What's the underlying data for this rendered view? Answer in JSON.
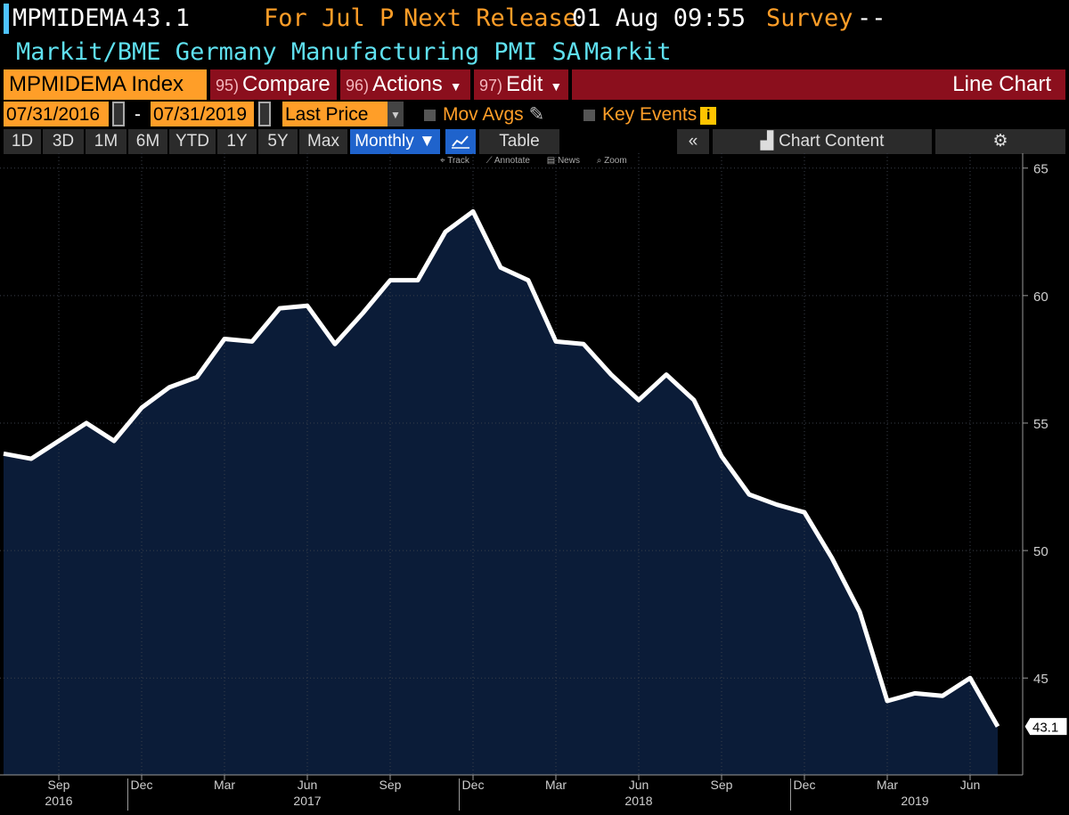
{
  "header": {
    "ticker": "MPMIDEMA",
    "last_value": "43.1",
    "for_period": "For Jul P",
    "next_release_label": "Next Release",
    "next_release_value": "01 Aug 09:55",
    "survey_label": "Survey",
    "survey_value": "--",
    "description": "Markit/BME Germany Manufacturing PMI SA",
    "source": "Markit"
  },
  "toolbar": {
    "security": "MPMIDEMA Index",
    "compare_num": "95)",
    "compare_label": "Compare",
    "actions_num": "96)",
    "actions_label": "Actions",
    "edit_num": "97)",
    "edit_label": "Edit",
    "chart_type": "Line Chart",
    "start_date": "07/31/2016",
    "date_sep": "-",
    "end_date": "07/31/2019",
    "field": "Last Price",
    "mov_avgs": "Mov Avgs",
    "key_events": "Key Events",
    "ranges": [
      "1D",
      "3D",
      "1M",
      "6M",
      "YTD",
      "1Y",
      "5Y",
      "Max"
    ],
    "frequency": "Monthly ▼",
    "table_label": "Table",
    "collapse_glyph": "«",
    "chart_content": "Chart Content",
    "settings_glyph": "⚙",
    "hints": [
      "Track",
      "Annotate",
      "News",
      "Zoom"
    ]
  },
  "colors": {
    "background": "#000000",
    "fill": "#0b1c38",
    "line": "#ffffff",
    "orange": "#ff9e28",
    "cyan": "#5fe0ef",
    "red_button": "#8b0f1d",
    "active_blue": "#1f63cc"
  },
  "chart_data": {
    "type": "area",
    "x": [
      "2016-07",
      "2016-08",
      "2016-09",
      "2016-10",
      "2016-11",
      "2016-12",
      "2017-01",
      "2017-02",
      "2017-03",
      "2017-04",
      "2017-05",
      "2017-06",
      "2017-07",
      "2017-08",
      "2017-09",
      "2017-10",
      "2017-11",
      "2017-12",
      "2018-01",
      "2018-02",
      "2018-03",
      "2018-04",
      "2018-05",
      "2018-06",
      "2018-07",
      "2018-08",
      "2018-09",
      "2018-10",
      "2018-11",
      "2018-12",
      "2019-01",
      "2019-02",
      "2019-03",
      "2019-04",
      "2019-05",
      "2019-06",
      "2019-07"
    ],
    "values": [
      53.8,
      53.6,
      54.3,
      55.0,
      54.3,
      55.6,
      56.4,
      56.8,
      58.3,
      58.2,
      59.5,
      59.6,
      58.1,
      59.3,
      60.6,
      60.6,
      62.5,
      63.3,
      61.1,
      60.6,
      58.2,
      58.1,
      56.9,
      55.9,
      56.9,
      55.9,
      53.7,
      52.2,
      51.8,
      51.5,
      49.7,
      47.6,
      44.1,
      44.4,
      44.3,
      45.0,
      43.1
    ],
    "last_value_label": "43.1",
    "ylim": [
      41.2,
      65.2
    ],
    "y_ticks": [
      45,
      50,
      55,
      60,
      65
    ],
    "y_tick_labels": [
      "45",
      "50",
      "55",
      "60",
      "65"
    ],
    "month_ticks": [
      {
        "date": "2016-09",
        "label": "Sep"
      },
      {
        "date": "2016-12",
        "label": "Dec"
      },
      {
        "date": "2017-03",
        "label": "Mar"
      },
      {
        "date": "2017-06",
        "label": "Jun"
      },
      {
        "date": "2017-09",
        "label": "Sep"
      },
      {
        "date": "2017-12",
        "label": "Dec"
      },
      {
        "date": "2018-03",
        "label": "Mar"
      },
      {
        "date": "2018-06",
        "label": "Jun"
      },
      {
        "date": "2018-09",
        "label": "Sep"
      },
      {
        "date": "2018-12",
        "label": "Dec"
      },
      {
        "date": "2019-03",
        "label": "Mar"
      },
      {
        "date": "2019-06",
        "label": "Jun"
      }
    ],
    "year_ticks": [
      {
        "date": "2016-09",
        "label": "2016"
      },
      {
        "date": "2017-06",
        "label": "2017"
      },
      {
        "date": "2018-06",
        "label": "2018"
      },
      {
        "date": "2019-04",
        "label": "2019"
      }
    ],
    "year_boundaries": [
      "2016-12",
      "2017-12",
      "2018-12"
    ],
    "grid": true,
    "title": "",
    "xlabel": "",
    "ylabel": ""
  }
}
